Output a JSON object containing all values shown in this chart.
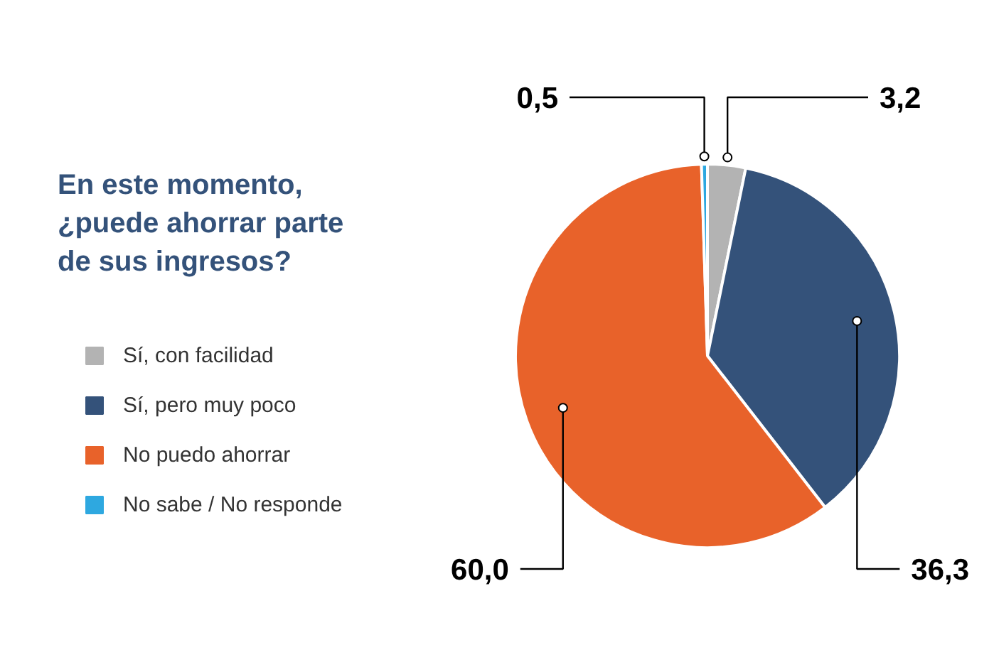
{
  "chart_data": {
    "type": "pie",
    "title": "En este momento,\n¿puede ahorrar parte\nde sus ingresos?",
    "categories": [
      "Sí, con facilidad",
      "Sí, pero muy poco",
      "No puedo ahorrar",
      "No sabe / No responde"
    ],
    "values": [
      3.2,
      36.3,
      60.0,
      0.5
    ],
    "colors": [
      "#b3b3b3",
      "#34527a",
      "#e8622a",
      "#2ea8e0"
    ],
    "value_labels": [
      "3,2",
      "36,3",
      "60,0",
      "0,5"
    ],
    "legend": "left"
  }
}
